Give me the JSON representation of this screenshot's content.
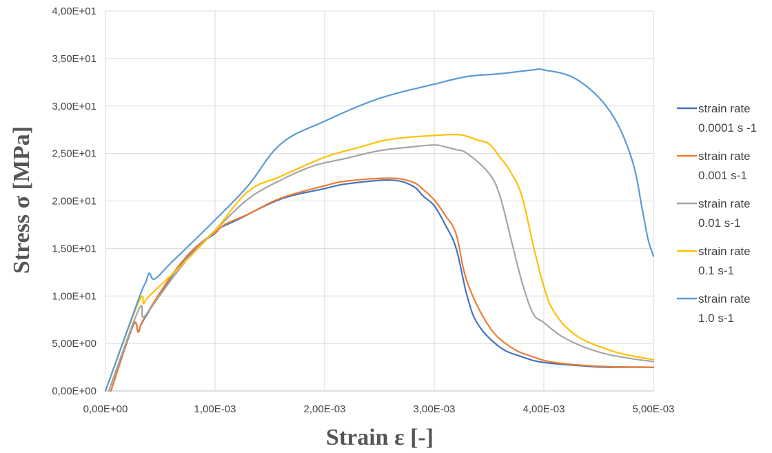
{
  "chart_data": {
    "type": "line",
    "xlabel": "Strain ε [-]",
    "ylabel": "Stress σ [MPa]",
    "xlim": [
      0,
      0.005
    ],
    "ylim": [
      0,
      40
    ],
    "x_ticks": [
      0,
      0.001,
      0.002,
      0.003,
      0.004,
      0.005
    ],
    "x_tick_labels": [
      "0,00E+00",
      "1,00E-03",
      "2,00E-03",
      "3,00E-03",
      "4,00E-03",
      "5,00E-03"
    ],
    "y_ticks": [
      0,
      5,
      10,
      15,
      20,
      25,
      30,
      35,
      40
    ],
    "y_tick_labels": [
      "0,00E+00",
      "5,00E+00",
      "1,00E+01",
      "1,50E+01",
      "2,00E+01",
      "2,50E+01",
      "3,00E+01",
      "3,50E+01",
      "4,00E+01"
    ],
    "grid": true,
    "legend_position": "right",
    "series": [
      {
        "name_lines": [
          "strain rate",
          "0.0001 s -1"
        ],
        "color": "#4472C4",
        "points": [
          [
            5e-05,
            0
          ],
          [
            0.00025,
            6.8
          ],
          [
            0.0003,
            6.3
          ],
          [
            0.00035,
            7.5
          ],
          [
            0.0006,
            12.0
          ],
          [
            0.0008,
            14.8
          ],
          [
            0.001,
            16.6
          ],
          [
            0.00105,
            17.2
          ],
          [
            0.0012,
            18.0
          ],
          [
            0.0016,
            20.2
          ],
          [
            0.002,
            21.3
          ],
          [
            0.0022,
            21.8
          ],
          [
            0.0026,
            22.2
          ],
          [
            0.0028,
            21.6
          ],
          [
            0.0029,
            20.5
          ],
          [
            0.003,
            19.5
          ],
          [
            0.0031,
            17.5
          ],
          [
            0.0032,
            15.0
          ],
          [
            0.0033,
            10.0
          ],
          [
            0.0034,
            7.0
          ],
          [
            0.0036,
            4.6
          ],
          [
            0.0038,
            3.6
          ],
          [
            0.004,
            3.0
          ],
          [
            0.0044,
            2.6
          ],
          [
            0.0046,
            2.5
          ],
          [
            0.005,
            2.5
          ]
        ]
      },
      {
        "name_lines": [
          "strain rate",
          "0.001 s-1"
        ],
        "color": "#ED7D31",
        "points": [
          [
            5e-05,
            0
          ],
          [
            0.00025,
            6.9
          ],
          [
            0.0003,
            6.2
          ],
          [
            0.00035,
            7.6
          ],
          [
            0.0006,
            12.1
          ],
          [
            0.0008,
            14.9
          ],
          [
            0.001,
            16.7
          ],
          [
            0.0011,
            17.6
          ],
          [
            0.0013,
            18.6
          ],
          [
            0.0016,
            20.3
          ],
          [
            0.002,
            21.6
          ],
          [
            0.0022,
            22.1
          ],
          [
            0.0026,
            22.4
          ],
          [
            0.0028,
            22.0
          ],
          [
            0.0029,
            21.2
          ],
          [
            0.003,
            20.1
          ],
          [
            0.0031,
            18.5
          ],
          [
            0.0032,
            16.5
          ],
          [
            0.0033,
            11.5
          ],
          [
            0.0035,
            6.8
          ],
          [
            0.0037,
            4.6
          ],
          [
            0.0039,
            3.6
          ],
          [
            0.0041,
            3.0
          ],
          [
            0.0045,
            2.6
          ],
          [
            0.005,
            2.5
          ]
        ]
      },
      {
        "name_lines": [
          "strain rate",
          "0.01 s-1"
        ],
        "color": "#A5A5A5",
        "points": [
          [
            3e-05,
            0
          ],
          [
            0.0003,
            8.5
          ],
          [
            0.00034,
            7.8
          ],
          [
            0.0004,
            8.5
          ],
          [
            0.0006,
            11.7
          ],
          [
            0.0008,
            14.6
          ],
          [
            0.001,
            16.9
          ],
          [
            0.0013,
            20.2
          ],
          [
            0.0016,
            22.2
          ],
          [
            0.0019,
            23.7
          ],
          [
            0.0022,
            24.5
          ],
          [
            0.0025,
            25.3
          ],
          [
            0.0028,
            25.7
          ],
          [
            0.003,
            25.9
          ],
          [
            0.0031,
            25.7
          ],
          [
            0.0032,
            25.4
          ],
          [
            0.0033,
            25.0
          ],
          [
            0.0035,
            22.9
          ],
          [
            0.0036,
            20.5
          ],
          [
            0.0037,
            16.0
          ],
          [
            0.0038,
            11.5
          ],
          [
            0.0039,
            8.2
          ],
          [
            0.004,
            7.2
          ],
          [
            0.0042,
            5.5
          ],
          [
            0.0045,
            4.1
          ],
          [
            0.0048,
            3.4
          ],
          [
            0.005,
            3.1
          ]
        ]
      },
      {
        "name_lines": [
          "strain rate",
          "0.1 s-1"
        ],
        "color": "#FFC000",
        "points": [
          [
            0,
            0
          ],
          [
            0.0003,
            9.3
          ],
          [
            0.00035,
            9.2
          ],
          [
            0.0004,
            10.0
          ],
          [
            0.0007,
            13.3
          ],
          [
            0.001,
            16.9
          ],
          [
            0.0013,
            21.0
          ],
          [
            0.0016,
            22.6
          ],
          [
            0.002,
            24.6
          ],
          [
            0.0023,
            25.6
          ],
          [
            0.0026,
            26.5
          ],
          [
            0.003,
            26.9
          ],
          [
            0.0032,
            27.0
          ],
          [
            0.0033,
            26.8
          ],
          [
            0.0034,
            26.4
          ],
          [
            0.0035,
            26.0
          ],
          [
            0.0036,
            24.6
          ],
          [
            0.0037,
            23.0
          ],
          [
            0.0038,
            20.5
          ],
          [
            0.0039,
            15.5
          ],
          [
            0.004,
            11.0
          ],
          [
            0.0041,
            8.2
          ],
          [
            0.0043,
            5.8
          ],
          [
            0.0046,
            4.3
          ],
          [
            0.0048,
            3.7
          ],
          [
            0.005,
            3.3
          ]
        ]
      },
      {
        "name_lines": [
          "strain rate",
          "1.0 s-1"
        ],
        "color": "#5B9BD5",
        "points": [
          [
            0,
            0
          ],
          [
            0.0003,
            9.6
          ],
          [
            0.00037,
            11.5
          ],
          [
            0.0004,
            12.4
          ],
          [
            0.00045,
            11.8
          ],
          [
            0.0006,
            13.5
          ],
          [
            0.001,
            18.0
          ],
          [
            0.0013,
            21.6
          ],
          [
            0.0016,
            26.0
          ],
          [
            0.002,
            28.4
          ],
          [
            0.0025,
            30.8
          ],
          [
            0.003,
            32.3
          ],
          [
            0.0033,
            33.1
          ],
          [
            0.0036,
            33.4
          ],
          [
            0.0039,
            33.8
          ],
          [
            0.004,
            33.8
          ],
          [
            0.0043,
            32.8
          ],
          [
            0.0046,
            29.5
          ],
          [
            0.0048,
            24.5
          ],
          [
            0.0049,
            19.0
          ],
          [
            0.00495,
            16.0
          ],
          [
            0.005,
            14.2
          ]
        ]
      }
    ]
  }
}
